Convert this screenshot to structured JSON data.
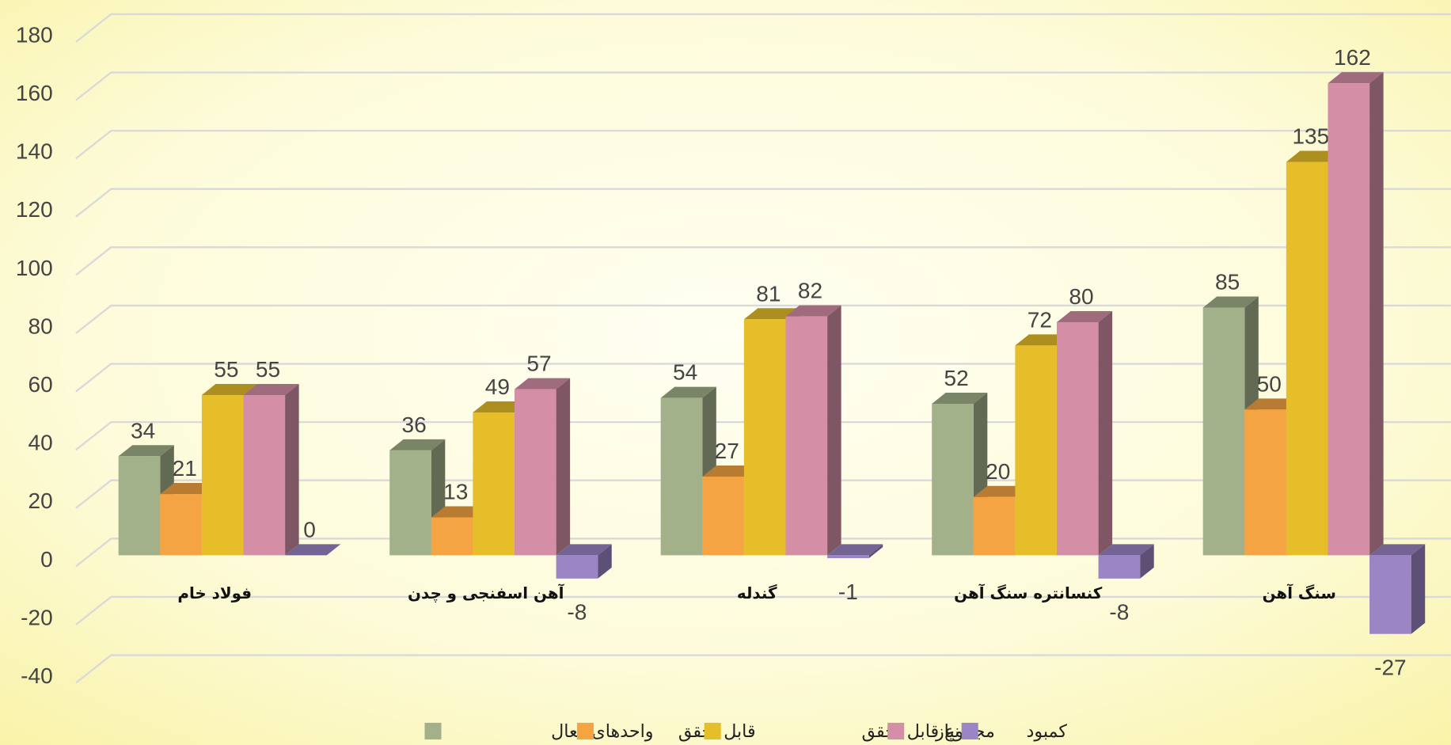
{
  "chart_data": {
    "type": "bar3d",
    "categories": [
      "فولاد خام",
      "آهن اسفنجی و چدن",
      "گندله",
      "کنسانتره سنگ آهن",
      "سنگ آهن"
    ],
    "series": [
      {
        "name": "واحدهای فعال",
        "color": "#a3b18a",
        "values": [
          34,
          36,
          54,
          52,
          85
        ]
      },
      {
        "name": "قابل تحقق",
        "color": "#f4a443",
        "values": [
          21,
          13,
          27,
          20,
          50
        ]
      },
      {
        "name": "مجموع قابل تحقق",
        "color": "#e6be2a",
        "values": [
          55,
          49,
          81,
          72,
          135
        ]
      },
      {
        "name": "نیاز",
        "color": "#d48fa6",
        "values": [
          55,
          57,
          82,
          80,
          162
        ]
      },
      {
        "name": "کمبود",
        "color": "#9b85c4",
        "values": [
          0,
          -8,
          -1,
          -8,
          -27
        ]
      }
    ],
    "ylim": [
      -40,
      180
    ],
    "yticks": [
      -40,
      -20,
      0,
      20,
      40,
      60,
      80,
      100,
      120,
      140,
      160,
      180
    ],
    "grid": true,
    "legend": "bottom"
  }
}
